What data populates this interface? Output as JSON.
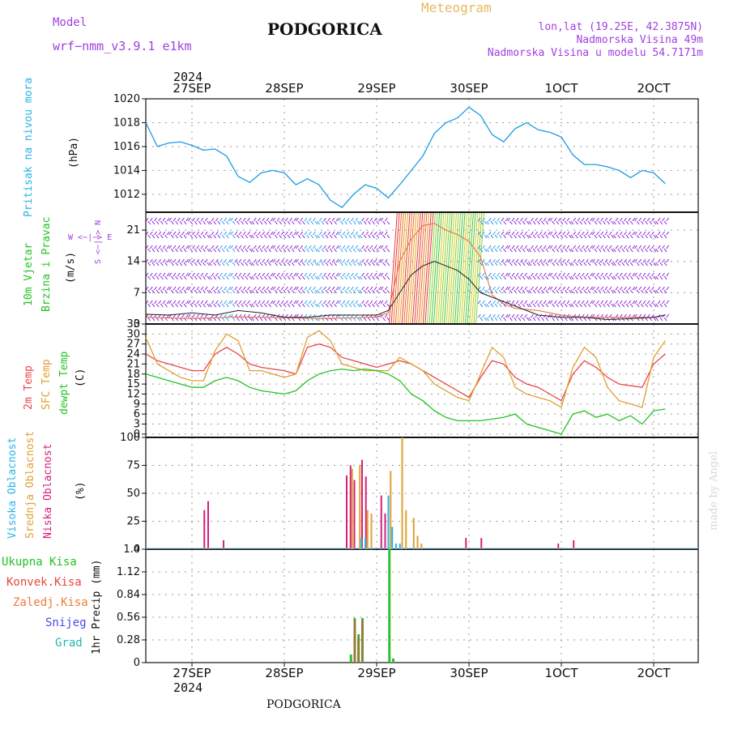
{
  "header": {
    "model_label": "Model",
    "model_name": "wrf−nmm_v3.9.1 e1km",
    "city": "PODGORICA",
    "meteogram": "Meteogram",
    "coords": "lon,lat (19.25E, 42.3875N)",
    "elev1": "Nadmorska Visina 49m",
    "elev2": "Nadmorska Visina u modelu 54.7171m",
    "year_top": "2024",
    "year_bottom": "2024",
    "footer_city": "PODGORICA",
    "credit": "made by Angel"
  },
  "colors": {
    "pressure": "#1a9be6",
    "temp2m": "#e8464b",
    "sfc": "#e0a030",
    "dew": "#22c322",
    "wind": "#8a1fd6",
    "high": "#2ab3e6",
    "mid": "#e0a030",
    "low": "#d4207a",
    "total": "#2fbf2f",
    "conv": "#e8463a",
    "grid": "#999999"
  },
  "panel_labels": {
    "pressure": "Pritisak na nivou mora",
    "pressure_unit": "(hPa)",
    "wind1": "10m Vjetar",
    "wind2": "Brzina i Pravac",
    "wind_unit": "(m/s)",
    "wind_ns": "S <−|−> N",
    "wind_we": "W <−|−> E",
    "t2m": "2m Temp",
    "sfc": "SFC Temp",
    "dew": "dewpt Temp",
    "temp_unit": "(C)",
    "cloud_high": "Visoka Oblacnost",
    "cloud_mid": "Srednja Oblacnost",
    "cloud_low": "Niska Oblacnost",
    "cloud_unit": "(%)",
    "precip_total": "Ukupna Kisa",
    "precip_conv": "Konvek.Kisa",
    "precip_frz": "Zaledj.Kisa",
    "precip_snow": "Snijeg",
    "precip_grad": "Grad",
    "precip_unit": "1hr Precip (mm)"
  },
  "chart_data": {
    "type": "line",
    "x_days": [
      "27SEP",
      "28SEP",
      "29SEP",
      "30SEP",
      "1OCT",
      "2OCT"
    ],
    "x_range_hours": [
      0,
      144
    ],
    "pressure": {
      "ylim": [
        1010.5,
        1020
      ],
      "ticks": [
        "1012",
        "1014",
        "1016",
        "1018",
        "1020"
      ],
      "points": [
        [
          0,
          1018
        ],
        [
          3,
          1016
        ],
        [
          6,
          1016.3
        ],
        [
          9,
          1016.4
        ],
        [
          12,
          1016.1
        ],
        [
          15,
          1015.7
        ],
        [
          18,
          1015.8
        ],
        [
          21,
          1015.2
        ],
        [
          24,
          1013.5
        ],
        [
          27,
          1013
        ],
        [
          30,
          1013.8
        ],
        [
          33,
          1014
        ],
        [
          36,
          1013.8
        ],
        [
          39,
          1012.8
        ],
        [
          42,
          1013.3
        ],
        [
          45,
          1012.8
        ],
        [
          48,
          1011.5
        ],
        [
          51,
          1010.9
        ],
        [
          54,
          1012
        ],
        [
          57,
          1012.8
        ],
        [
          60,
          1012.5
        ],
        [
          63,
          1011.7
        ],
        [
          66,
          1012.8
        ],
        [
          69,
          1014
        ],
        [
          72,
          1015.2
        ],
        [
          75,
          1017.1
        ],
        [
          78,
          1018
        ],
        [
          81,
          1018.4
        ],
        [
          84,
          1019.3
        ],
        [
          87,
          1018.6
        ],
        [
          90,
          1017
        ],
        [
          93,
          1016.4
        ],
        [
          96,
          1017.5
        ],
        [
          99,
          1018
        ],
        [
          102,
          1017.4
        ],
        [
          105,
          1017.2
        ],
        [
          108,
          1016.8
        ],
        [
          111,
          1015.3
        ],
        [
          114,
          1014.5
        ],
        [
          117,
          1014.5
        ],
        [
          120,
          1014.3
        ],
        [
          123,
          1014
        ],
        [
          126,
          1013.4
        ],
        [
          129,
          1014
        ],
        [
          132,
          1013.8
        ],
        [
          135,
          1012.9
        ]
      ]
    },
    "wind": {
      "ylim": [
        0,
        25
      ],
      "ticks": [
        "0",
        "7",
        "14",
        "21"
      ],
      "speed_line": [
        [
          0,
          2.2
        ],
        [
          6,
          2.0
        ],
        [
          12,
          2.5
        ],
        [
          18,
          2.0
        ],
        [
          24,
          3.0
        ],
        [
          30,
          2.5
        ],
        [
          36,
          1.5
        ],
        [
          42,
          1.5
        ],
        [
          48,
          2.0
        ],
        [
          54,
          2.0
        ],
        [
          60,
          2.0
        ],
        [
          63,
          3.0
        ],
        [
          66,
          7.0
        ],
        [
          69,
          11.0
        ],
        [
          72,
          13.0
        ],
        [
          75,
          14.0
        ],
        [
          78,
          13.0
        ],
        [
          81,
          12.0
        ],
        [
          84,
          10.0
        ],
        [
          87,
          7.0
        ],
        [
          90,
          6.0
        ],
        [
          93,
          5.0
        ],
        [
          96,
          4.0
        ],
        [
          99,
          3.0
        ],
        [
          102,
          2.0
        ],
        [
          108,
          1.5
        ],
        [
          114,
          1.5
        ],
        [
          120,
          1.0
        ],
        [
          126,
          1.2
        ],
        [
          132,
          1.5
        ],
        [
          135,
          2.0
        ]
      ],
      "gust_line": [
        [
          0,
          1.5
        ],
        [
          12,
          1.2
        ],
        [
          24,
          1.6
        ],
        [
          36,
          1.4
        ],
        [
          48,
          1.2
        ],
        [
          60,
          1.6
        ],
        [
          63,
          2.5
        ],
        [
          66,
          14.0
        ],
        [
          69,
          19.0
        ],
        [
          72,
          22.0
        ],
        [
          75,
          22.5
        ],
        [
          78,
          21.0
        ],
        [
          81,
          20.0
        ],
        [
          84,
          18.5
        ],
        [
          87,
          15.0
        ],
        [
          90,
          6.5
        ],
        [
          93,
          4.5
        ],
        [
          96,
          3.5
        ],
        [
          102,
          3.0
        ],
        [
          108,
          2.0
        ],
        [
          114,
          1.5
        ],
        [
          120,
          1.5
        ],
        [
          126,
          1.5
        ],
        [
          132,
          1.5
        ],
        [
          135,
          2.0
        ]
      ]
    },
    "temperature": {
      "ylim": [
        -1,
        33
      ],
      "ticks": [
        "0",
        "3",
        "6",
        "9",
        "12",
        "15",
        "18",
        "21",
        "24",
        "27",
        "30",
        "33"
      ],
      "series": [
        {
          "name": "2m Temp",
          "points": [
            [
              0,
              24
            ],
            [
              3,
              22
            ],
            [
              6,
              21
            ],
            [
              9,
              20
            ],
            [
              12,
              19
            ],
            [
              15,
              19
            ],
            [
              18,
              24
            ],
            [
              21,
              26
            ],
            [
              24,
              24
            ],
            [
              27,
              21
            ],
            [
              30,
              20
            ],
            [
              33,
              19.5
            ],
            [
              36,
              19
            ],
            [
              39,
              18
            ],
            [
              42,
              26
            ],
            [
              45,
              27
            ],
            [
              48,
              26
            ],
            [
              51,
              23
            ],
            [
              54,
              22
            ],
            [
              57,
              21
            ],
            [
              60,
              20
            ],
            [
              63,
              21
            ],
            [
              66,
              22
            ],
            [
              69,
              21
            ],
            [
              72,
              19
            ],
            [
              75,
              17
            ],
            [
              78,
              15
            ],
            [
              81,
              13
            ],
            [
              84,
              11
            ],
            [
              87,
              17
            ],
            [
              90,
              22
            ],
            [
              93,
              21
            ],
            [
              96,
              17
            ],
            [
              99,
              15
            ],
            [
              102,
              14
            ],
            [
              105,
              12
            ],
            [
              108,
              10
            ],
            [
              111,
              18
            ],
            [
              114,
              22
            ],
            [
              117,
              20
            ],
            [
              120,
              17
            ],
            [
              123,
              15
            ],
            [
              126,
              14.5
            ],
            [
              129,
              14
            ],
            [
              132,
              21
            ],
            [
              135,
              24
            ]
          ]
        },
        {
          "name": "SFC Temp",
          "points": [
            [
              0,
              29
            ],
            [
              3,
              21
            ],
            [
              6,
              19
            ],
            [
              9,
              17
            ],
            [
              12,
              16
            ],
            [
              15,
              16
            ],
            [
              18,
              25
            ],
            [
              21,
              30
            ],
            [
              24,
              28
            ],
            [
              27,
              19
            ],
            [
              30,
              19
            ],
            [
              33,
              18
            ],
            [
              36,
              17
            ],
            [
              39,
              18
            ],
            [
              42,
              29
            ],
            [
              45,
              31
            ],
            [
              48,
              28
            ],
            [
              51,
              21
            ],
            [
              54,
              20
            ],
            [
              57,
              19
            ],
            [
              60,
              19
            ],
            [
              63,
              19
            ],
            [
              66,
              23
            ],
            [
              69,
              21
            ],
            [
              72,
              19
            ],
            [
              75,
              15
            ],
            [
              78,
              13
            ],
            [
              81,
              11
            ],
            [
              84,
              10
            ],
            [
              87,
              18
            ],
            [
              90,
              26
            ],
            [
              93,
              23
            ],
            [
              96,
              14
            ],
            [
              99,
              12
            ],
            [
              102,
              11
            ],
            [
              105,
              10
            ],
            [
              108,
              8
            ],
            [
              111,
              20
            ],
            [
              114,
              26
            ],
            [
              117,
              23
            ],
            [
              120,
              14
            ],
            [
              123,
              10
            ],
            [
              126,
              9
            ],
            [
              129,
              8
            ],
            [
              132,
              23
            ],
            [
              135,
              28
            ]
          ]
        },
        {
          "name": "dewpt Temp",
          "points": [
            [
              0,
              18
            ],
            [
              3,
              17
            ],
            [
              6,
              16
            ],
            [
              9,
              15
            ],
            [
              12,
              14
            ],
            [
              15,
              14
            ],
            [
              18,
              16
            ],
            [
              21,
              17
            ],
            [
              24,
              16
            ],
            [
              27,
              14
            ],
            [
              30,
              13
            ],
            [
              33,
              12.5
            ],
            [
              36,
              12
            ],
            [
              39,
              13
            ],
            [
              42,
              16
            ],
            [
              45,
              18
            ],
            [
              48,
              19
            ],
            [
              51,
              19.5
            ],
            [
              54,
              19
            ],
            [
              57,
              19.5
            ],
            [
              60,
              19
            ],
            [
              63,
              18
            ],
            [
              66,
              16
            ],
            [
              69,
              12
            ],
            [
              72,
              10
            ],
            [
              75,
              7
            ],
            [
              78,
              5
            ],
            [
              81,
              4
            ],
            [
              84,
              4
            ],
            [
              87,
              4
            ],
            [
              90,
              4.5
            ],
            [
              93,
              5
            ],
            [
              96,
              6
            ],
            [
              99,
              3
            ],
            [
              102,
              2
            ],
            [
              105,
              1
            ],
            [
              108,
              0
            ],
            [
              111,
              6
            ],
            [
              114,
              7
            ],
            [
              117,
              5
            ],
            [
              120,
              6
            ],
            [
              123,
              4
            ],
            [
              126,
              5.5
            ],
            [
              129,
              3
            ],
            [
              132,
              7
            ],
            [
              135,
              7.5
            ]
          ]
        }
      ]
    },
    "cloud": {
      "ylim": [
        0,
        100
      ],
      "ticks": [
        "0",
        "25",
        "50",
        "75",
        "100"
      ],
      "low_bars": [
        [
          15,
          35
        ],
        [
          16,
          43
        ],
        [
          20,
          8
        ],
        [
          52,
          66
        ],
        [
          53,
          75
        ],
        [
          54,
          62
        ],
        [
          56,
          80
        ],
        [
          57,
          65
        ],
        [
          61,
          48
        ],
        [
          62,
          32
        ],
        [
          83,
          10
        ],
        [
          87,
          10
        ],
        [
          107,
          5
        ],
        [
          111,
          8
        ]
      ],
      "mid_bars": [
        [
          53,
          72
        ],
        [
          55,
          75
        ],
        [
          57,
          35
        ],
        [
          58,
          32
        ],
        [
          63,
          70
        ],
        [
          66,
          100
        ],
        [
          67,
          35
        ],
        [
          69,
          28
        ],
        [
          70,
          12
        ],
        [
          71,
          5
        ]
      ],
      "high_bars": [
        [
          55,
          10
        ],
        [
          56,
          10
        ],
        [
          62,
          48
        ],
        [
          63,
          20
        ],
        [
          64,
          5
        ],
        [
          65,
          5
        ]
      ]
    },
    "precip": {
      "ylim": [
        0,
        1.4
      ],
      "ticks": [
        "0",
        "0.28",
        "0.56",
        "0.84",
        "1.12",
        "1.4"
      ],
      "total_bars": [
        [
          53,
          0.1
        ],
        [
          54,
          0.55
        ],
        [
          55,
          0.35
        ],
        [
          56,
          0.55
        ],
        [
          63,
          1.4
        ],
        [
          64,
          0.05
        ]
      ],
      "conv_bars": [
        [
          54,
          0.53
        ],
        [
          55,
          0.32
        ],
        [
          56,
          0.52
        ]
      ]
    }
  }
}
